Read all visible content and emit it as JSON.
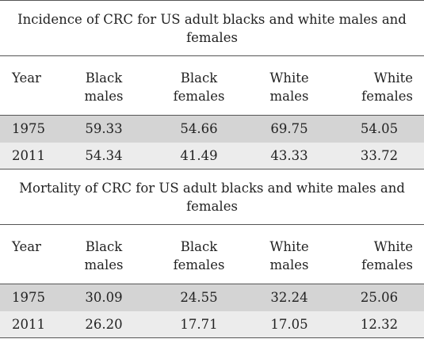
{
  "sections": [
    {
      "caption": "Incidence of CRC for US adult blacks and white males and females",
      "headers": [
        {
          "line1": "Year",
          "line2": ""
        },
        {
          "line1": "Black",
          "line2": "males"
        },
        {
          "line1": "Black",
          "line2": "females"
        },
        {
          "line1": "White",
          "line2": "males"
        },
        {
          "line1": "White",
          "line2": "females"
        }
      ],
      "rows": [
        [
          "1975",
          "59.33",
          "54.66",
          "69.75",
          "54.05"
        ],
        [
          "2011",
          "54.34",
          "41.49",
          "43.33",
          "33.72"
        ]
      ]
    },
    {
      "caption": "Mortality of CRC for US adult blacks and white males and females",
      "headers": [
        {
          "line1": "Year",
          "line2": ""
        },
        {
          "line1": "Black",
          "line2": "males"
        },
        {
          "line1": "Black",
          "line2": "females"
        },
        {
          "line1": "White",
          "line2": "males"
        },
        {
          "line1": "White",
          "line2": "females"
        }
      ],
      "rows": [
        [
          "1975",
          "30.09",
          "24.55",
          "32.24",
          "25.06"
        ],
        [
          "2011",
          "26.20",
          "17.71",
          "17.05",
          "12.32"
        ]
      ]
    }
  ],
  "colors": {
    "rule": "#555555",
    "row_shade_dark": "#d4d4d4",
    "row_shade_light": "#ececec",
    "text": "#222222"
  }
}
